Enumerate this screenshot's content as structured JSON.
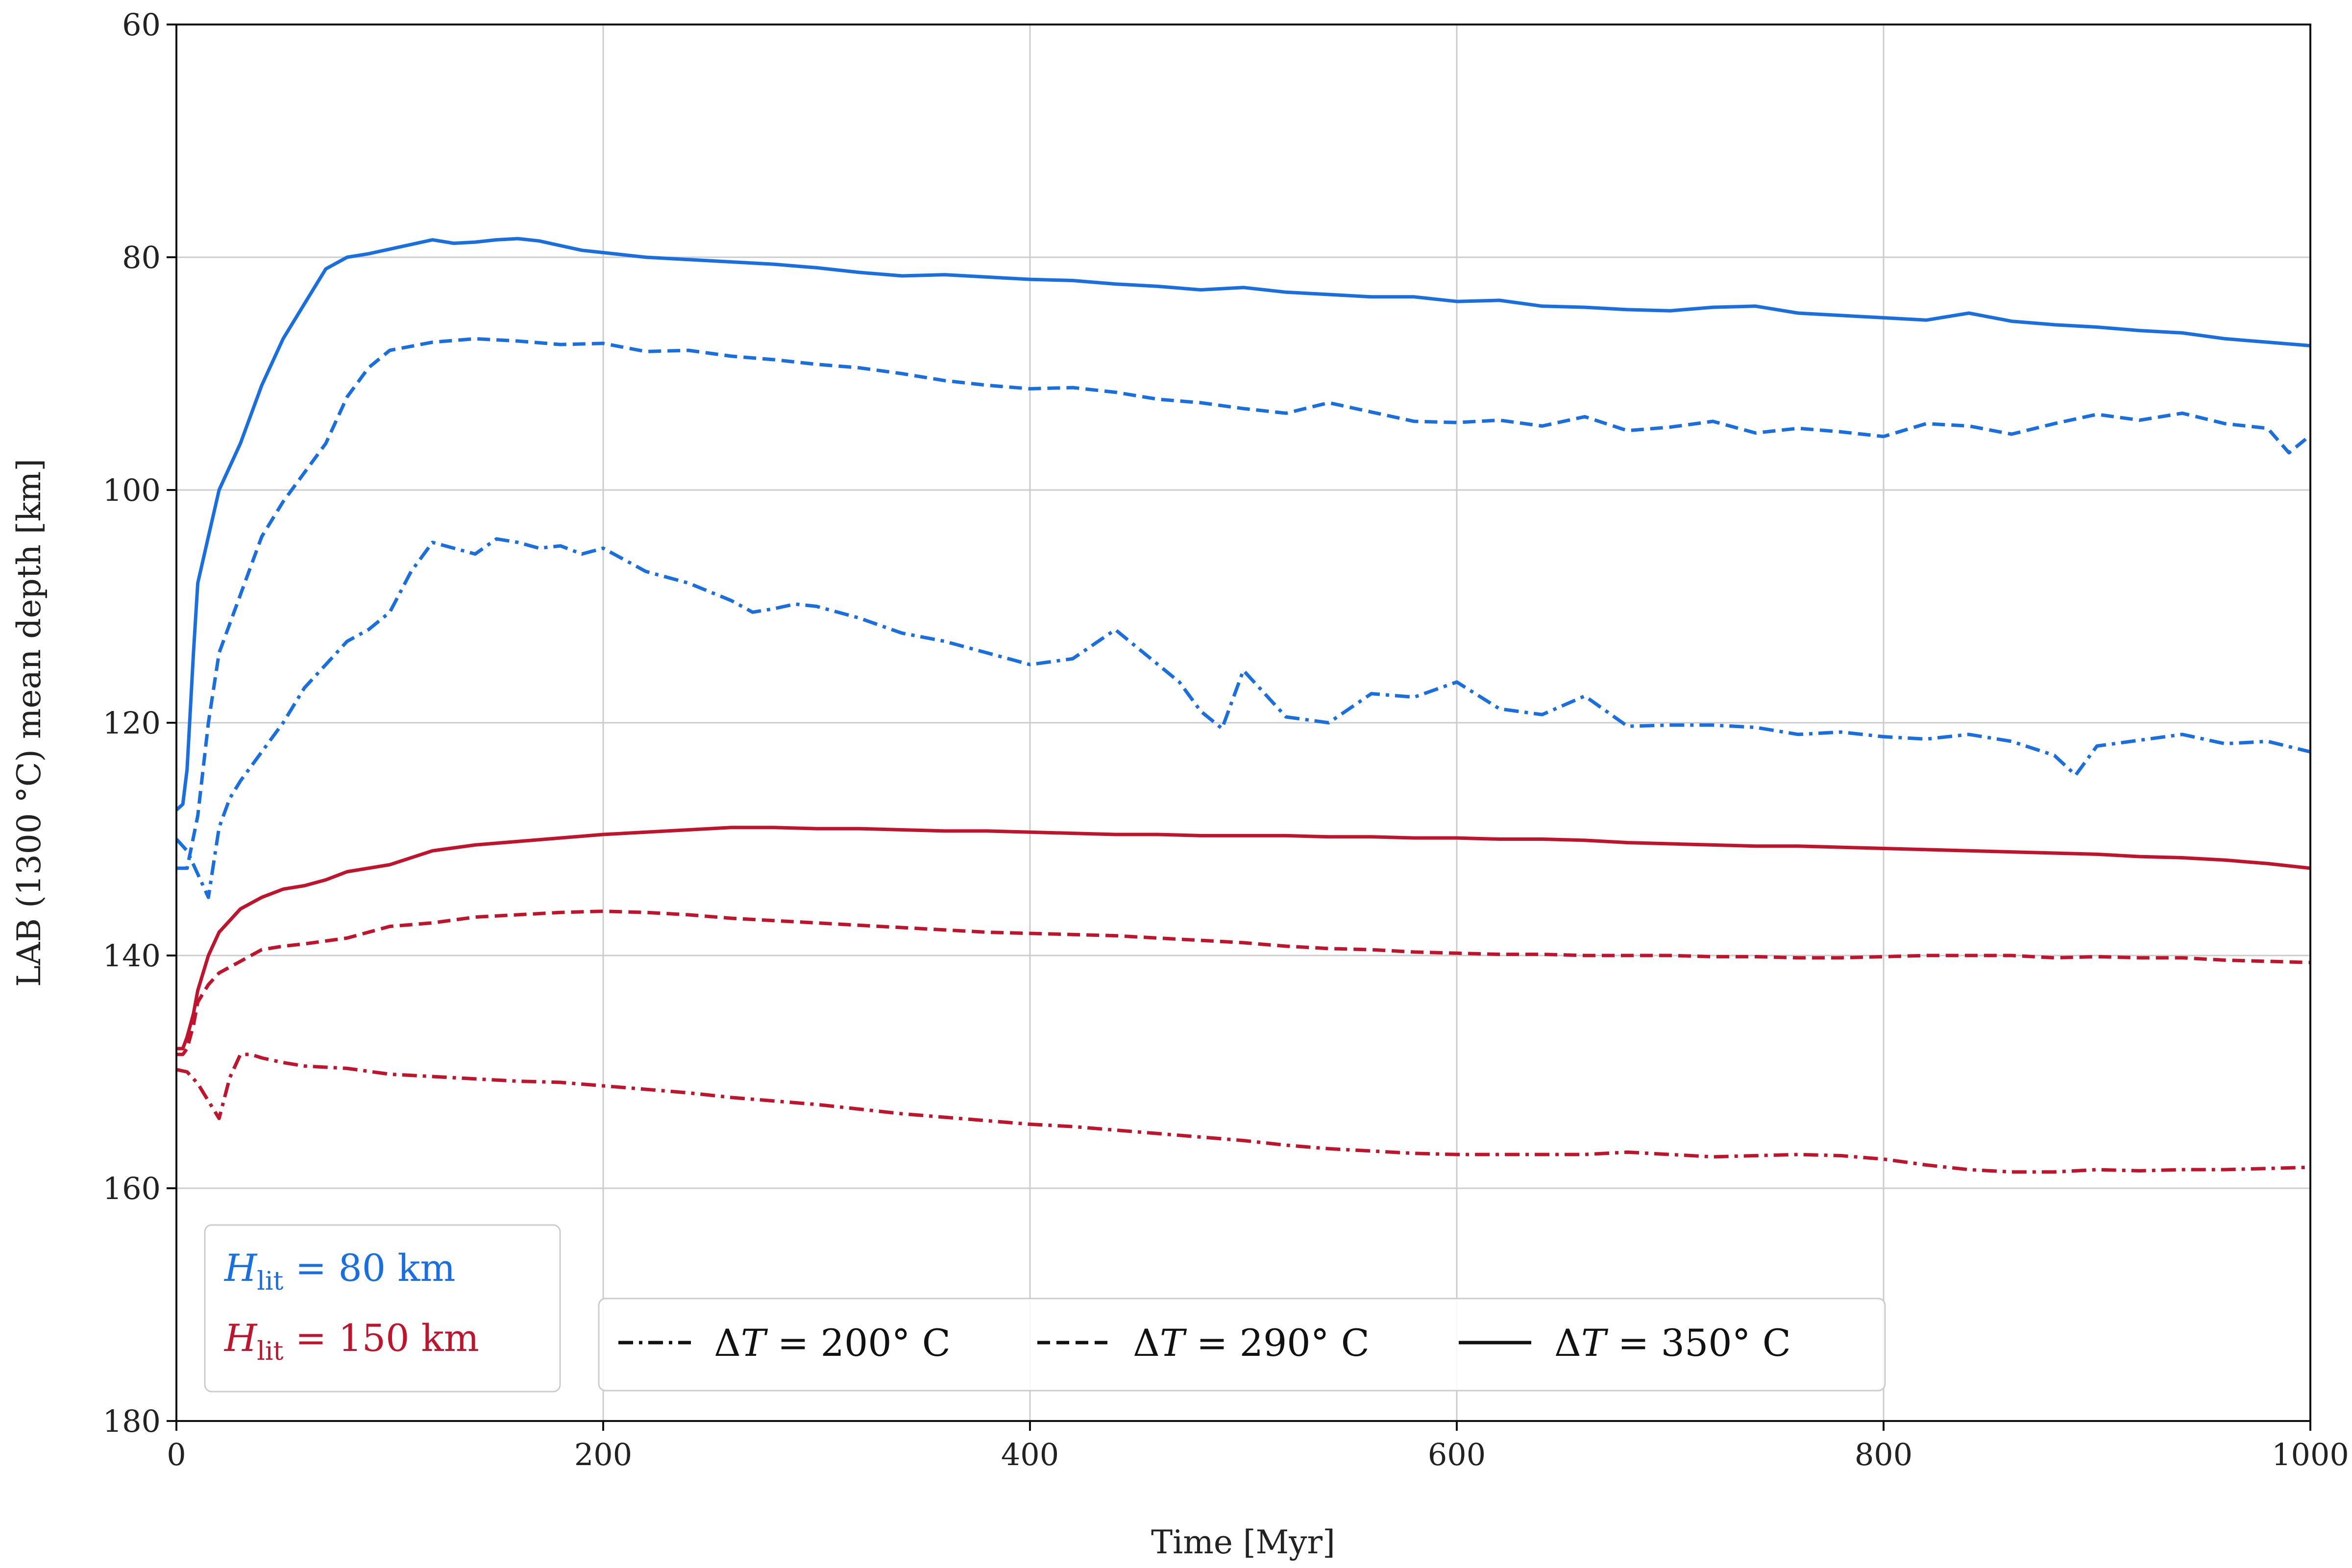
{
  "chart_data": {
    "type": "line",
    "xlabel": "Time [Myr]",
    "ylabel": "LAB (1300 °C) mean depth [km]",
    "xlim": [
      0,
      1000
    ],
    "ylim": [
      180,
      60
    ],
    "y_inverted": true,
    "xticks": [
      "0",
      "200",
      "400",
      "600",
      "800",
      "1000"
    ],
    "yticks": [
      "60",
      "80",
      "100",
      "120",
      "140",
      "160",
      "180"
    ],
    "grid": true,
    "legends": [
      {
        "placement": "lower-left",
        "entries": [
          {
            "sym": "H",
            "sub": "lit",
            "rest": " = 80 km",
            "color": "#1a6fe0"
          },
          {
            "sym": "H",
            "sub": "lit",
            "rest": " = 150 km",
            "color": "#c0142d"
          }
        ]
      },
      {
        "placement": "lower-center",
        "entries": [
          {
            "delta": "Δ",
            "sym": "T",
            "rest": " = 200° C",
            "style": "dashdot"
          },
          {
            "delta": "Δ",
            "sym": "T",
            "rest": " = 290° C",
            "style": "dashed"
          },
          {
            "delta": "Δ",
            "sym": "T",
            "rest": " = 350° C",
            "style": "solid"
          }
        ]
      }
    ],
    "colors": {
      "blue": "#1a6fe0",
      "red": "#c0142d"
    },
    "series": [
      {
        "group": "H_lit = 80 km",
        "dT": "350",
        "color": "#1a6fe0",
        "style": "solid",
        "x": [
          0,
          3,
          5,
          8,
          10,
          15,
          20,
          30,
          40,
          50,
          60,
          70,
          80,
          90,
          100,
          110,
          120,
          130,
          140,
          150,
          160,
          170,
          180,
          190,
          200,
          220,
          240,
          260,
          280,
          300,
          320,
          340,
          360,
          380,
          400,
          420,
          440,
          460,
          480,
          500,
          520,
          540,
          560,
          580,
          600,
          620,
          640,
          660,
          680,
          700,
          720,
          740,
          760,
          780,
          800,
          820,
          840,
          860,
          880,
          900,
          920,
          940,
          960,
          980,
          1000
        ],
        "y": [
          127.5,
          127,
          124,
          114,
          108,
          104,
          100,
          96,
          91,
          87,
          84,
          81,
          80,
          79.7,
          79.3,
          78.9,
          78.5,
          78.8,
          78.7,
          78.5,
          78.4,
          78.6,
          79,
          79.4,
          79.6,
          80,
          80.2,
          80.4,
          80.6,
          80.9,
          81.3,
          81.6,
          81.5,
          81.7,
          81.9,
          82,
          82.3,
          82.5,
          82.8,
          82.6,
          83,
          83.2,
          83.4,
          83.4,
          83.8,
          83.7,
          84.2,
          84.3,
          84.5,
          84.6,
          84.3,
          84.2,
          84.8,
          85,
          85.2,
          85.4,
          84.8,
          85.5,
          85.8,
          86,
          86.3,
          86.5,
          87,
          87.3,
          87.6
        ]
      },
      {
        "group": "H_lit = 80 km",
        "dT": "290",
        "color": "#1a6fe0",
        "style": "dashed",
        "x": [
          0,
          5,
          10,
          15,
          20,
          30,
          40,
          50,
          60,
          70,
          80,
          90,
          100,
          120,
          140,
          160,
          180,
          200,
          220,
          240,
          260,
          280,
          300,
          320,
          340,
          360,
          380,
          400,
          420,
          440,
          460,
          480,
          500,
          520,
          540,
          560,
          580,
          600,
          620,
          640,
          660,
          680,
          700,
          720,
          740,
          760,
          780,
          800,
          820,
          840,
          860,
          880,
          900,
          920,
          940,
          960,
          980,
          990,
          1000
        ],
        "y": [
          132.5,
          132.5,
          128,
          120,
          114,
          109,
          104,
          101,
          98.5,
          96,
          92,
          89.5,
          88,
          87.3,
          87,
          87.2,
          87.5,
          87.4,
          88.1,
          88,
          88.5,
          88.8,
          89.2,
          89.5,
          90,
          90.6,
          91,
          91.3,
          91.2,
          91.6,
          92.2,
          92.5,
          93,
          93.4,
          92.5,
          93.3,
          94.1,
          94.2,
          94,
          94.5,
          93.7,
          94.9,
          94.6,
          94.1,
          95.1,
          94.7,
          95,
          95.4,
          94.3,
          94.5,
          95.2,
          94.3,
          93.5,
          94,
          93.4,
          94.3,
          94.7,
          96.8,
          95.3
        ]
      },
      {
        "group": "H_lit = 80 km",
        "dT": "200",
        "color": "#1a6fe0",
        "style": "dashdot",
        "x": [
          0,
          5,
          10,
          15,
          20,
          25,
          30,
          40,
          50,
          60,
          70,
          80,
          90,
          100,
          110,
          120,
          130,
          140,
          150,
          160,
          170,
          180,
          190,
          200,
          210,
          220,
          240,
          260,
          270,
          280,
          290,
          300,
          320,
          340,
          360,
          380,
          400,
          420,
          440,
          460,
          470,
          480,
          490,
          500,
          510,
          520,
          540,
          560,
          580,
          600,
          620,
          640,
          660,
          680,
          700,
          720,
          740,
          760,
          780,
          800,
          820,
          840,
          860,
          880,
          890,
          900,
          920,
          940,
          960,
          980,
          1000
        ],
        "y": [
          130,
          131,
          133,
          135,
          129,
          126.5,
          125,
          122.5,
          120,
          117,
          115,
          113,
          112,
          110.5,
          107,
          104.5,
          105,
          105.5,
          104.2,
          104.5,
          105,
          104.8,
          105.5,
          105,
          106,
          107,
          108,
          109.5,
          110.5,
          110.2,
          109.8,
          110,
          111,
          112.3,
          113,
          114,
          115,
          114.5,
          112,
          115,
          116.5,
          119,
          120.5,
          115.5,
          117.5,
          119.5,
          120,
          117.5,
          117.8,
          116.5,
          118.8,
          119.3,
          117.7,
          120.3,
          120.2,
          120.2,
          120.4,
          121,
          120.8,
          121.2,
          121.4,
          121,
          121.6,
          122.8,
          124.5,
          122,
          121.5,
          121,
          121.8,
          121.6,
          122.5
        ]
      },
      {
        "group": "H_lit = 150 km",
        "dT": "350",
        "color": "#c0142d",
        "style": "solid",
        "x": [
          0,
          3,
          5,
          8,
          10,
          15,
          20,
          30,
          40,
          50,
          60,
          70,
          80,
          100,
          120,
          140,
          160,
          180,
          200,
          220,
          240,
          260,
          280,
          300,
          320,
          340,
          360,
          380,
          400,
          420,
          440,
          460,
          480,
          500,
          520,
          540,
          560,
          580,
          600,
          620,
          640,
          660,
          680,
          700,
          720,
          740,
          760,
          780,
          800,
          820,
          840,
          860,
          880,
          900,
          920,
          940,
          960,
          980,
          1000
        ],
        "y": [
          148,
          148,
          147,
          145,
          143,
          140,
          138,
          136,
          135,
          134.3,
          134,
          133.5,
          132.8,
          132.2,
          131,
          130.5,
          130.2,
          129.9,
          129.6,
          129.4,
          129.2,
          129,
          129,
          129.1,
          129.1,
          129.2,
          129.3,
          129.3,
          129.4,
          129.5,
          129.6,
          129.6,
          129.7,
          129.7,
          129.7,
          129.8,
          129.8,
          129.9,
          129.9,
          130,
          130,
          130.1,
          130.3,
          130.4,
          130.5,
          130.6,
          130.6,
          130.7,
          130.8,
          130.9,
          131,
          131.1,
          131.2,
          131.3,
          131.5,
          131.6,
          131.8,
          132.1,
          132.5
        ]
      },
      {
        "group": "H_lit = 150 km",
        "dT": "290",
        "color": "#c0142d",
        "style": "dashed",
        "x": [
          0,
          3,
          5,
          8,
          10,
          15,
          20,
          30,
          40,
          50,
          60,
          80,
          100,
          120,
          140,
          160,
          180,
          200,
          220,
          240,
          260,
          280,
          300,
          320,
          340,
          360,
          380,
          400,
          420,
          440,
          460,
          480,
          500,
          520,
          540,
          560,
          580,
          600,
          620,
          640,
          660,
          680,
          700,
          720,
          740,
          760,
          780,
          800,
          820,
          840,
          860,
          880,
          900,
          920,
          940,
          960,
          980,
          1000
        ],
        "y": [
          148.5,
          148.5,
          148,
          146,
          144,
          142.5,
          141.5,
          140.5,
          139.5,
          139.2,
          139,
          138.5,
          137.5,
          137.2,
          136.7,
          136.5,
          136.3,
          136.2,
          136.3,
          136.5,
          136.8,
          137,
          137.2,
          137.4,
          137.6,
          137.8,
          138,
          138.1,
          138.2,
          138.3,
          138.5,
          138.7,
          138.9,
          139.2,
          139.4,
          139.5,
          139.7,
          139.8,
          139.9,
          139.9,
          140,
          140,
          140,
          140.1,
          140.1,
          140.2,
          140.2,
          140.1,
          140,
          140,
          140,
          140.2,
          140.1,
          140.2,
          140.2,
          140.4,
          140.5,
          140.6
        ]
      },
      {
        "group": "H_lit = 150 km",
        "dT": "200",
        "color": "#c0142d",
        "style": "dashdot",
        "x": [
          0,
          5,
          10,
          15,
          20,
          25,
          30,
          35,
          40,
          50,
          60,
          80,
          100,
          120,
          140,
          160,
          180,
          200,
          220,
          240,
          260,
          280,
          300,
          320,
          340,
          360,
          380,
          400,
          420,
          440,
          460,
          480,
          500,
          520,
          540,
          560,
          580,
          600,
          620,
          640,
          660,
          680,
          700,
          720,
          740,
          760,
          780,
          800,
          820,
          840,
          860,
          880,
          900,
          920,
          940,
          960,
          980,
          1000
        ],
        "y": [
          149.8,
          150,
          151,
          152.5,
          154,
          150.5,
          148.5,
          148.5,
          148.8,
          149.2,
          149.5,
          149.7,
          150.2,
          150.4,
          150.6,
          150.8,
          150.9,
          151.2,
          151.5,
          151.8,
          152.2,
          152.5,
          152.8,
          153.2,
          153.6,
          153.9,
          154.2,
          154.5,
          154.7,
          155,
          155.3,
          155.6,
          155.9,
          156.3,
          156.6,
          156.8,
          157,
          157.1,
          157.1,
          157.1,
          157.1,
          156.9,
          157.1,
          157.3,
          157.2,
          157.1,
          157.2,
          157.5,
          158,
          158.4,
          158.6,
          158.6,
          158.4,
          158.5,
          158.4,
          158.4,
          158.3,
          158.2
        ]
      }
    ]
  }
}
